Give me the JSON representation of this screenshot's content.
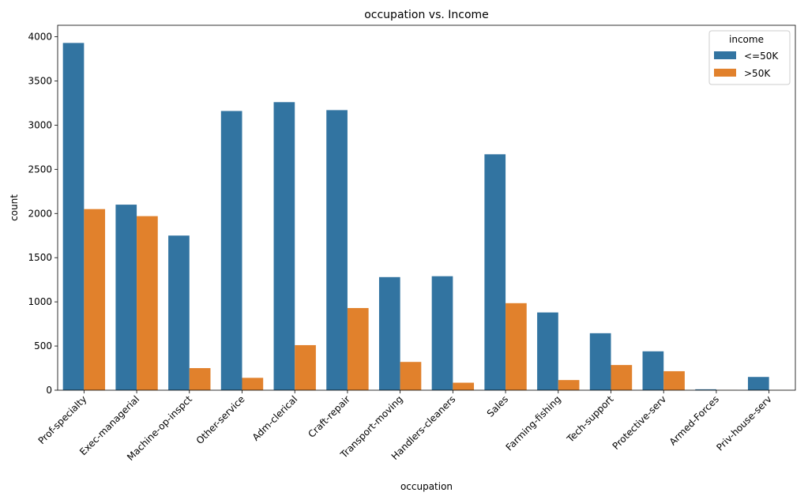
{
  "chart_data": {
    "type": "bar",
    "title": "occupation vs. Income",
    "xlabel": "occupation",
    "ylabel": "count",
    "ylim": [
      0,
      4130
    ],
    "yticks": [
      0,
      500,
      1000,
      1500,
      2000,
      2500,
      3000,
      3500,
      4000
    ],
    "categories": [
      "Prof-specialty",
      "Exec-managerial",
      "Machine-op-inspct",
      "Other-service",
      "Adm-clerical",
      "Craft-repair",
      "Transport-moving",
      "Handlers-cleaners",
      "Sales",
      "Farming-fishing",
      "Tech-support",
      "Protective-serv",
      "Armed-Forces",
      "Priv-house-serv"
    ],
    "legend": {
      "title": "income",
      "position": "top-right"
    },
    "series": [
      {
        "name": "<=50K",
        "color": "#3274a1",
        "values": [
          3930,
          2100,
          1750,
          3160,
          3260,
          3170,
          1280,
          1290,
          2670,
          880,
          645,
          440,
          10,
          150
        ]
      },
      {
        "name": ">50K",
        "color": "#e1812c",
        "values": [
          2050,
          1970,
          250,
          140,
          510,
          930,
          320,
          85,
          985,
          115,
          285,
          215,
          1,
          1
        ]
      }
    ],
    "grid": false
  }
}
